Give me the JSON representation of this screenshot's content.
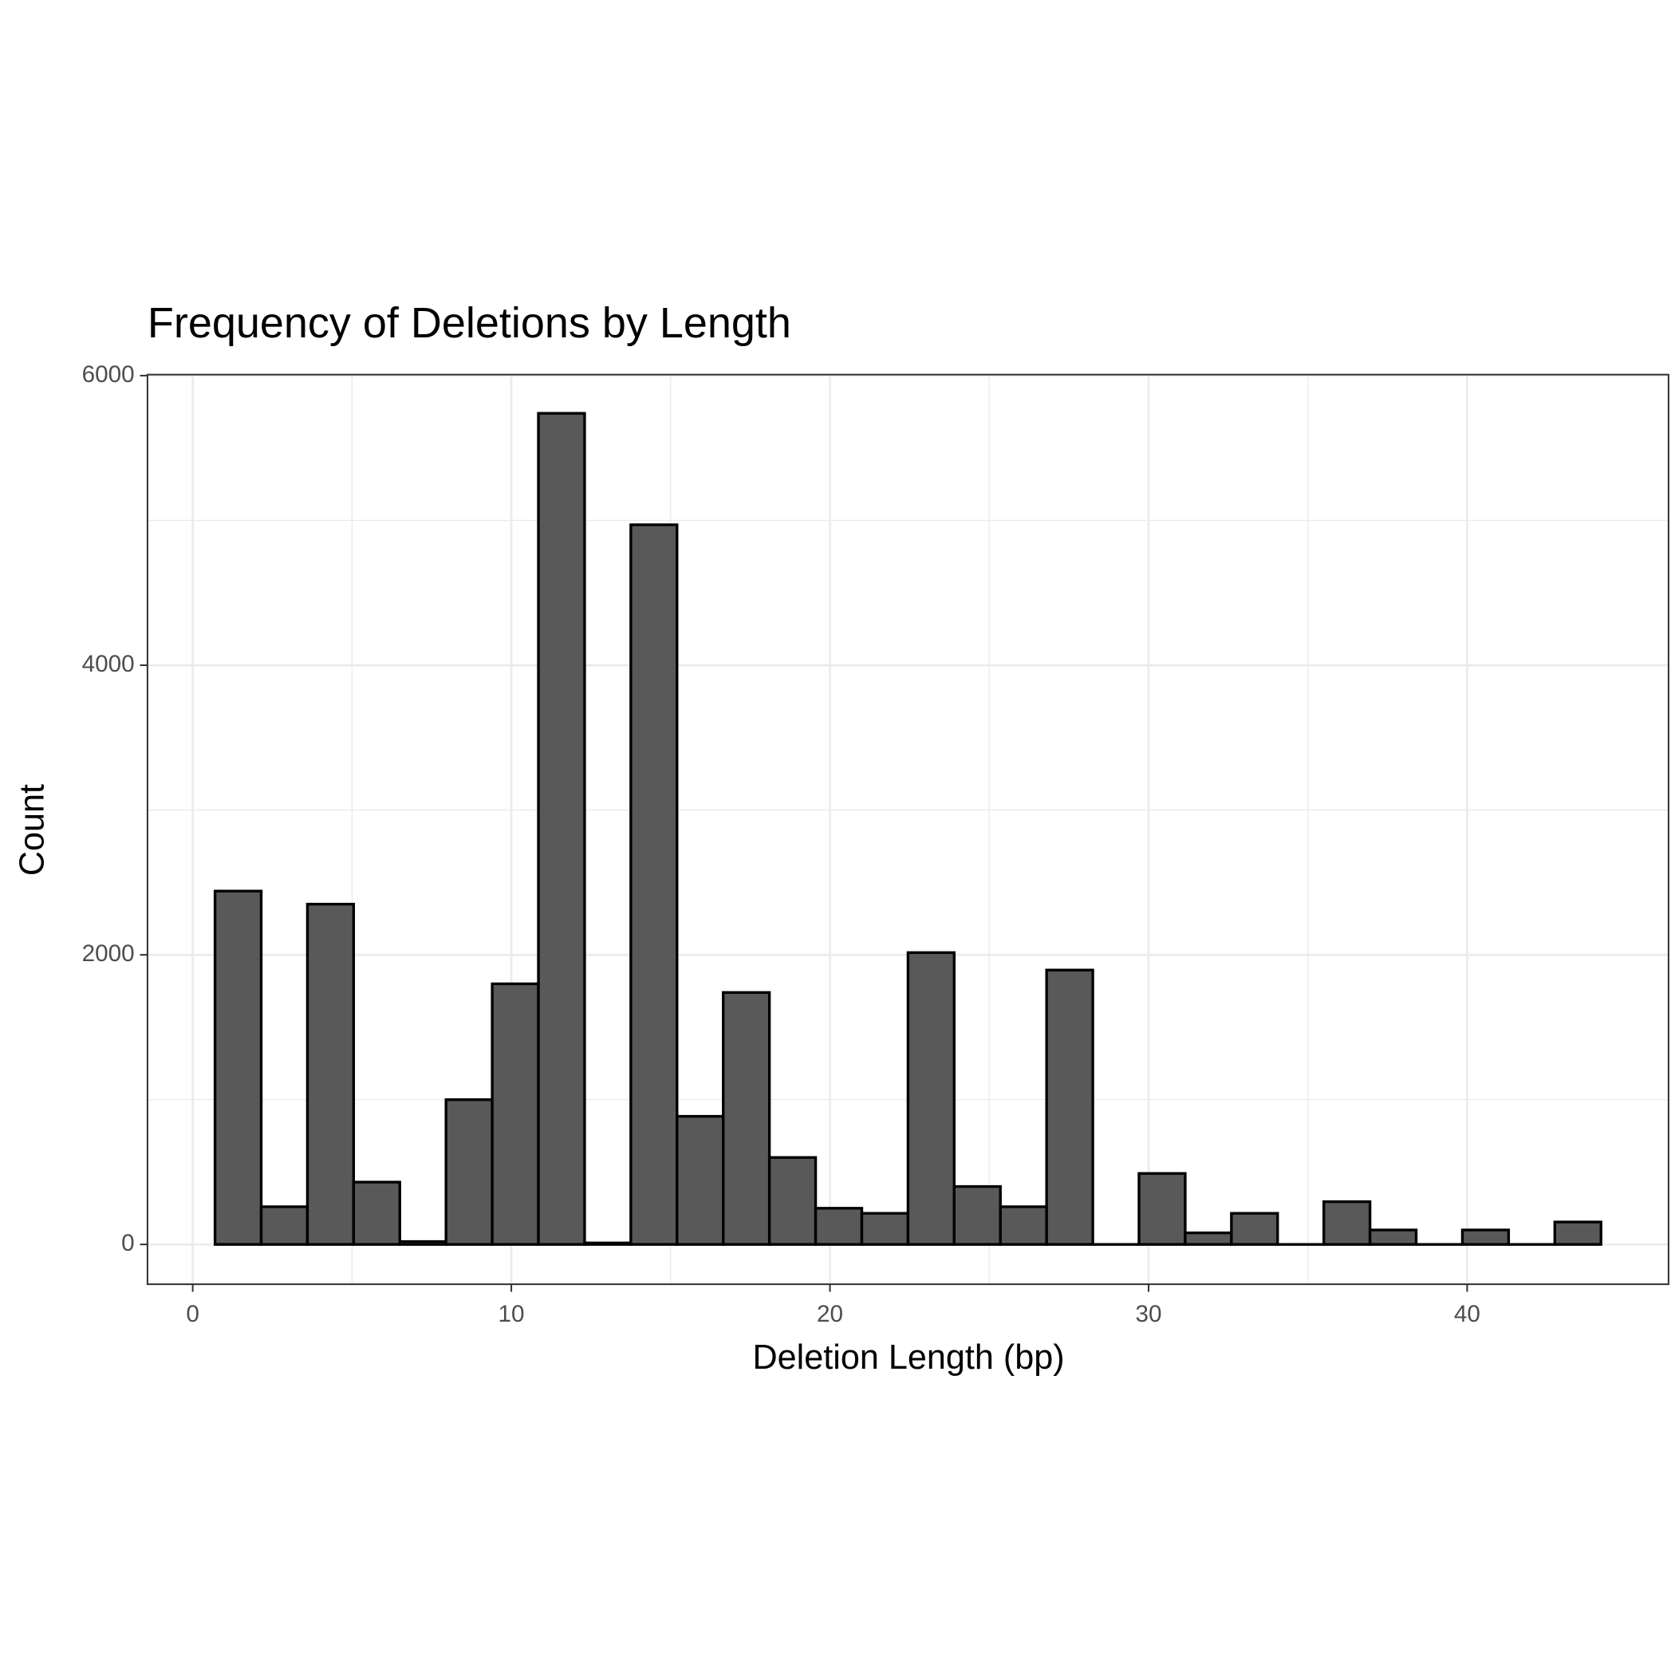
{
  "chart_data": {
    "type": "histogram",
    "title": "Frequency of Deletions by Length",
    "x_label": "Deletion Length (bp)",
    "y_label": "Count",
    "bins": [
      0.7,
      2.15,
      3.6,
      5.05,
      6.5,
      7.95,
      9.4,
      10.85,
      12.3,
      13.75,
      15.2,
      16.65,
      18.1,
      19.55,
      21,
      22.45,
      23.9,
      25.35,
      26.8,
      28.25,
      29.7,
      31.15,
      32.6,
      34.05,
      35.5,
      36.95,
      38.4,
      39.85,
      41.3,
      42.75,
      44.2
    ],
    "values": [
      2440,
      260,
      2350,
      430,
      20,
      1000,
      1800,
      5740,
      10,
      4970,
      885,
      1740,
      600,
      250,
      215,
      2015,
      400,
      260,
      1895,
      0,
      490,
      80,
      215,
      0,
      295,
      100,
      0,
      100,
      0,
      155
    ],
    "color": "#595959",
    "xlim": [
      -1.42,
      46.32
    ],
    "xticks": [
      0,
      10,
      20,
      30,
      40
    ],
    "ylim": [
      -275,
      6007
    ],
    "yticks": [
      0,
      2000,
      4000,
      6000
    ],
    "grid": true
  }
}
